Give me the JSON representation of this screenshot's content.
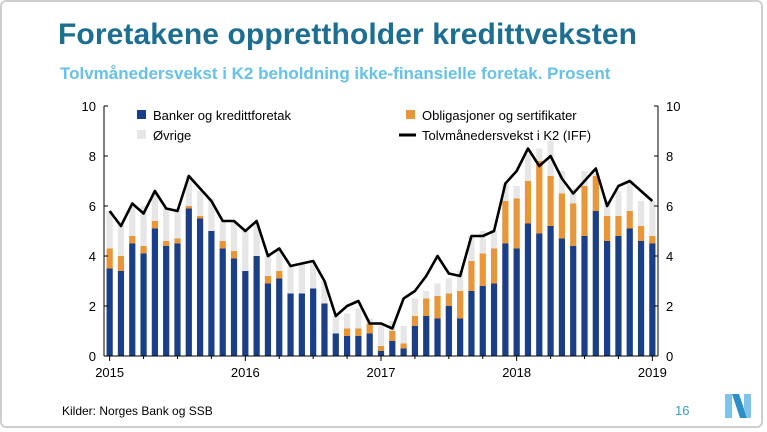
{
  "title": "Foretakene opprettholder kredittveksten",
  "subtitle": "Tolvmånedersvekst i K2 beholdning ikke-finansielle foretak. Prosent",
  "footer": {
    "source": "Kilder: Norges Bank og SSB",
    "page_number": "16"
  },
  "colors": {
    "banks": "#1b3f87",
    "bonds": "#e8963a",
    "other": "#e6e6e6",
    "line": "#000000",
    "title": "#1e6e91",
    "subtitle": "#68c1e6"
  },
  "chart_data": {
    "type": "bar",
    "stacked": true,
    "x_start": "2015-01",
    "x_end": "2019-01",
    "frequency": "monthly",
    "xticks": [
      "2015",
      "2016",
      "2017",
      "2018",
      "2019"
    ],
    "ylim": [
      0,
      10
    ],
    "yticks": [
      0,
      2,
      4,
      6,
      8,
      10
    ],
    "legend": [
      "Banker og kredittforetak",
      "Obligasjoner og sertifikater",
      "Øvrige",
      "Tolvmånedersvekst i K2 (IFF)"
    ],
    "series": [
      {
        "name": "Banker og kredittforetak",
        "kind": "bar",
        "color": "#1b3f87",
        "values": [
          3.5,
          3.4,
          4.5,
          4.1,
          5.1,
          4.4,
          4.5,
          5.9,
          5.5,
          5.0,
          4.3,
          3.9,
          3.4,
          4.0,
          2.9,
          3.1,
          2.5,
          2.5,
          2.7,
          2.1,
          0.9,
          0.8,
          0.8,
          0.9,
          0.2,
          0.6,
          0.3,
          1.2,
          1.6,
          1.5,
          2.0,
          1.5,
          2.6,
          2.8,
          2.9,
          4.5,
          4.3,
          5.3,
          4.9,
          5.2,
          4.7,
          4.4,
          4.8,
          5.8,
          4.6,
          4.8,
          5.1,
          4.6,
          4.5
        ]
      },
      {
        "name": "Obligasjoner og sertifikater",
        "kind": "bar",
        "color": "#e8963a",
        "values": [
          0.8,
          0.6,
          0.3,
          0.3,
          0.3,
          0.2,
          0.2,
          0.1,
          0.1,
          0.0,
          0.3,
          0.3,
          0.0,
          0.0,
          0.3,
          0.3,
          0.0,
          0.0,
          0.0,
          0.0,
          0.0,
          0.3,
          0.3,
          0.4,
          0.2,
          0.4,
          0.2,
          0.4,
          0.7,
          0.9,
          0.5,
          1.1,
          1.2,
          1.3,
          1.4,
          1.7,
          2.0,
          1.7,
          2.9,
          2.0,
          1.8,
          1.7,
          2.0,
          1.4,
          1.0,
          0.8,
          0.7,
          0.6,
          0.3
        ]
      },
      {
        "name": "Øvrige",
        "kind": "bar",
        "color": "#e6e6e6",
        "values": [
          1.5,
          1.3,
          1.2,
          1.6,
          1.1,
          1.3,
          1.2,
          1.2,
          1.0,
          1.3,
          0.8,
          1.2,
          1.6,
          1.3,
          0.8,
          0.9,
          1.1,
          1.2,
          1.1,
          0.9,
          0.7,
          0.6,
          0.8,
          0.2,
          0.9,
          0.4,
          0.7,
          0.7,
          0.3,
          0.5,
          0.6,
          0.8,
          1.0,
          0.9,
          0.7,
          0.7,
          0.5,
          1.1,
          0.5,
          1.4,
          0.9,
          0.6,
          0.6,
          0.1,
          0.6,
          1.0,
          1.2,
          1.0,
          1.4
        ]
      },
      {
        "name": "Tolvmånedersvekst i K2 (IFF)",
        "kind": "line",
        "color": "#000000",
        "values": [
          5.8,
          5.2,
          6.1,
          5.7,
          6.6,
          5.9,
          5.8,
          7.2,
          6.7,
          6.2,
          5.4,
          5.4,
          5.0,
          5.4,
          4.0,
          4.3,
          3.6,
          3.7,
          3.8,
          3.0,
          1.6,
          2.0,
          2.2,
          1.3,
          1.3,
          1.1,
          2.3,
          2.6,
          3.2,
          4.0,
          3.3,
          3.2,
          4.8,
          4.8,
          5.0,
          6.9,
          7.4,
          8.3,
          7.6,
          8.0,
          7.1,
          6.5,
          7.0,
          7.5,
          6.0,
          6.8,
          7.0,
          6.6,
          6.2
        ]
      }
    ]
  }
}
